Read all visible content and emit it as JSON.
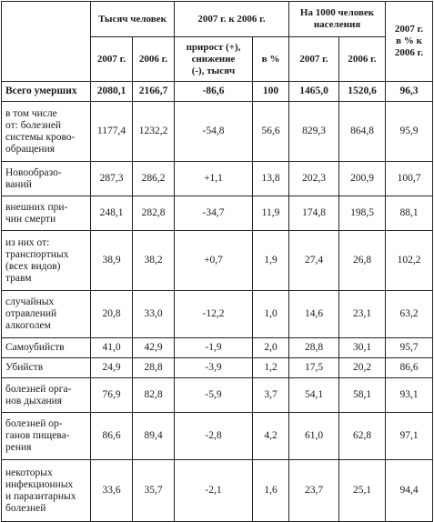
{
  "header": {
    "group_thousands": "Тысяч человек",
    "group_change": "2007 г. к 2006 г.",
    "group_per1000": "На 1000 человек\nнаселения",
    "col_pct_2006": "2007 г.\nв % к\n2006 г.",
    "y2007": "2007 г.",
    "y2006": "2006 г.",
    "change_abs": "прирост (+),\nснижение\n(-), тысяч",
    "change_pct": "в %"
  },
  "rows": [
    {
      "label": "Всего умерших",
      "t2007": "2080,1",
      "t2006": "2166,7",
      "chg": "-86,6",
      "pct": "100",
      "p2007": "1465,0",
      "p2006": "1520,6",
      "ratio": "96,3"
    },
    {
      "label": "в том числе\nот: болезней\nсистемы крово-\nобращения",
      "t2007": "1177,4",
      "t2006": "1232,2",
      "chg": "-54,8",
      "pct": "56,6",
      "p2007": "829,3",
      "p2006": "864,8",
      "ratio": "95,9"
    },
    {
      "label": "Новообразо-\nваний",
      "t2007": "287,3",
      "t2006": "286,2",
      "chg": "+1,1",
      "pct": "13,8",
      "p2007": "202,3",
      "p2006": "200,9",
      "ratio": "100,7"
    },
    {
      "label": "внешних при-\nчин смерти",
      "t2007": "248,1",
      "t2006": "282,8",
      "chg": "-34,7",
      "pct": "11,9",
      "p2007": "174,8",
      "p2006": "198,5",
      "ratio": "88,1"
    },
    {
      "label": "из них от:\nтранспортных\n(всех видов)\nтравм",
      "t2007": "38,9",
      "t2006": "38,2",
      "chg": "+0,7",
      "pct": "1,9",
      "p2007": "27,4",
      "p2006": "26,8",
      "ratio": "102,2"
    },
    {
      "label": "случайных\nотравлений\nалкоголем",
      "t2007": "20,8",
      "t2006": "33,0",
      "chg": "-12,2",
      "pct": "1,0",
      "p2007": "14,6",
      "p2006": "23,1",
      "ratio": "63,2"
    },
    {
      "label": "Самоубийств",
      "t2007": "41,0",
      "t2006": "42,9",
      "chg": "-1,9",
      "pct": "2,0",
      "p2007": "28,8",
      "p2006": "30,1",
      "ratio": "95,7"
    },
    {
      "label": "Убийств",
      "t2007": "24,9",
      "t2006": "28,8",
      "chg": "-3,9",
      "pct": "1,2",
      "p2007": "17,5",
      "p2006": "20,2",
      "ratio": "86,6"
    },
    {
      "label": "болезней орга-\nнов дыхания",
      "t2007": "76,9",
      "t2006": "82,8",
      "chg": "-5,9",
      "pct": "3,7",
      "p2007": "54,1",
      "p2006": "58,1",
      "ratio": "93,1"
    },
    {
      "label": "болезней ор-\nганов пищева-\nрения",
      "t2007": "86,6",
      "t2006": "89,4",
      "chg": "-2,8",
      "pct": "4,2",
      "p2007": "61,0",
      "p2006": "62,8",
      "ratio": "97,1"
    },
    {
      "label": "некоторых\nинфекционных\nи паразитарных\nболезней",
      "t2007": "33,6",
      "t2006": "35,7",
      "chg": "-2,1",
      "pct": "1,6",
      "p2007": "23,7",
      "p2006": "25,1",
      "ratio": "94,4"
    }
  ]
}
